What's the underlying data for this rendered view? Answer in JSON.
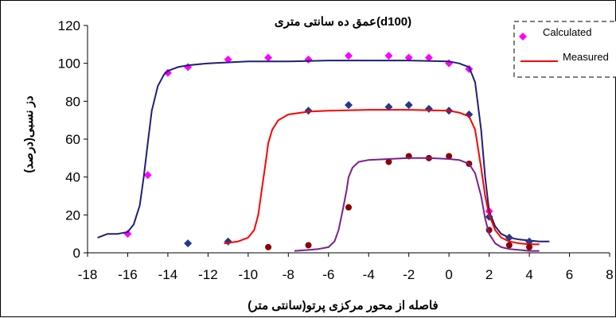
{
  "chart_data": {
    "type": "scatter",
    "title": "عمق ده سانتی متری(d100)",
    "xlabel": "فاصله از محور مرکزی پرتو(سانتی متر)",
    "ylabel": "دز نسبی(درصد)",
    "xlim": [
      -18,
      8
    ],
    "ylim": [
      0,
      120
    ],
    "xticks": [
      -18,
      -16,
      -14,
      -12,
      -10,
      -8,
      -6,
      -4,
      -2,
      0,
      2,
      4,
      6,
      8
    ],
    "yticks": [
      0,
      20,
      40,
      60,
      80,
      100,
      120
    ],
    "grid": false,
    "legend": {
      "position": "top-right",
      "entries": [
        "Calculated",
        "Measured"
      ]
    },
    "series": [
      {
        "name": "Calculated",
        "kind": "markers",
        "marker": "diamond",
        "color": "#FF00FF",
        "x": [
          -16,
          -15,
          -14,
          -13,
          -11,
          -9,
          -7,
          -5,
          -3,
          -2,
          -1,
          0,
          1,
          2
        ],
        "y": [
          10,
          41,
          95,
          98,
          102,
          103,
          102,
          104,
          104,
          103,
          103,
          100,
          97,
          22
        ]
      },
      {
        "name": "Measured",
        "kind": "line",
        "color": "#1F1F7A",
        "x": [
          -17.5,
          -17,
          -16.5,
          -16,
          -15.7,
          -15.4,
          -15.2,
          -15,
          -14.8,
          -14.5,
          -14.2,
          -14,
          -13.5,
          -13,
          -12,
          -10,
          -8,
          -6,
          -4,
          -2,
          0,
          0.5,
          1,
          1.3,
          1.6,
          1.8,
          2,
          2.3,
          2.6,
          3,
          3.5,
          4,
          4.5,
          5
        ],
        "y": [
          8,
          10,
          10,
          11,
          15,
          25,
          40,
          58,
          75,
          88,
          94,
          96,
          98,
          99,
          100,
          101,
          101,
          101.5,
          101.5,
          101.5,
          101,
          100,
          98,
          90,
          65,
          40,
          22,
          14,
          10,
          8,
          7,
          6.5,
          6,
          6
        ]
      },
      {
        "name": "",
        "kind": "markers",
        "marker": "diamond",
        "color": "#1F3A8F",
        "x": [
          -13,
          -11,
          -7,
          -5,
          -3,
          -2,
          -1,
          0,
          1,
          2,
          3,
          4
        ],
        "y": [
          5,
          6,
          75,
          78,
          77,
          78,
          76,
          75,
          73,
          19,
          8,
          6
        ]
      },
      {
        "name": "",
        "kind": "line",
        "color": "#FF0000",
        "x": [
          -11.2,
          -10.5,
          -10,
          -9.7,
          -9.5,
          -9.3,
          -9.1,
          -9,
          -8.8,
          -8.5,
          -8,
          -7,
          -6,
          -4,
          -2,
          0,
          0.5,
          1,
          1.3,
          1.6,
          1.8,
          2,
          2.3,
          2.6,
          3,
          3.5,
          4,
          4.5
        ],
        "y": [
          5,
          6,
          8,
          12,
          20,
          35,
          50,
          58,
          65,
          70,
          73,
          74.5,
          75,
          75.5,
          75.5,
          75,
          74,
          72,
          65,
          45,
          30,
          20,
          12,
          8,
          6,
          5,
          4.5,
          4.5
        ]
      },
      {
        "name": "",
        "kind": "markers",
        "marker": "circle",
        "color": "#8B0000",
        "x": [
          -9,
          -7,
          -5,
          -3,
          -2,
          -1,
          0,
          1,
          2,
          3,
          4
        ],
        "y": [
          3,
          4,
          24,
          48,
          51,
          50,
          51,
          47,
          12,
          4,
          3
        ]
      },
      {
        "name": "",
        "kind": "line",
        "color": "#7B1F8F",
        "x": [
          -7.7,
          -7,
          -6.5,
          -6,
          -5.7,
          -5.5,
          -5.3,
          -5.1,
          -5,
          -4.8,
          -4.5,
          -4,
          -3,
          -2,
          -1,
          0,
          0.5,
          1,
          1.3,
          1.6,
          1.8,
          2,
          2.3,
          2.6,
          3,
          3.5,
          4,
          4.5
        ],
        "y": [
          1,
          1.5,
          2,
          3,
          6,
          12,
          22,
          33,
          40,
          45,
          48,
          49,
          49.5,
          50,
          50,
          49.5,
          49,
          47,
          42,
          30,
          18,
          10,
          5,
          3,
          2,
          1.5,
          1,
          1
        ]
      }
    ]
  }
}
